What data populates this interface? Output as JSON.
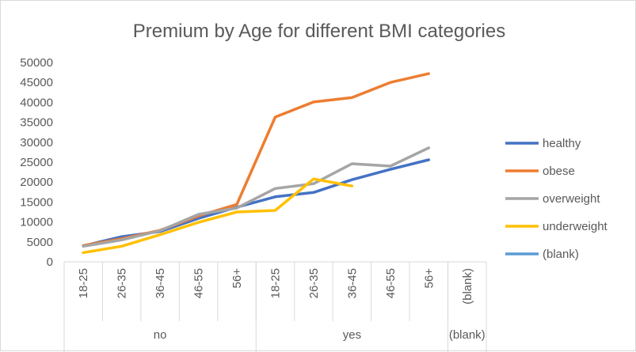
{
  "chart_data": {
    "type": "line",
    "title": "Premium by Age for different BMI categories",
    "xlabel": "",
    "ylabel": "",
    "ylim": [
      0,
      50000
    ],
    "y_ticks": [
      "50000",
      "45000",
      "40000",
      "35000",
      "30000",
      "25000",
      "20000",
      "15000",
      "10000",
      "5000",
      "0"
    ],
    "groups": [
      {
        "name": "no",
        "categories": [
          "18-25",
          "26-35",
          "36-45",
          "46-55",
          "56+"
        ]
      },
      {
        "name": "yes",
        "categories": [
          "18-25",
          "26-35",
          "36-45",
          "46-55",
          "56+"
        ]
      },
      {
        "name": "(blank)",
        "categories": [
          "(blank)"
        ]
      }
    ],
    "categories": [
      "no / 18-25",
      "no / 26-35",
      "no / 36-45",
      "no / 46-55",
      "no / 56+",
      "yes / 18-25",
      "yes / 26-35",
      "yes / 36-45",
      "yes / 46-55",
      "yes / 56+",
      "(blank) / (blank)"
    ],
    "series": [
      {
        "name": "healthy",
        "color": "#4472C4",
        "values": [
          4000,
          6300,
          7600,
          10900,
          13700,
          16300,
          17400,
          20600,
          23200,
          25600,
          null
        ]
      },
      {
        "name": "obese",
        "color": "#ED7D31",
        "values": [
          4100,
          5800,
          7900,
          11500,
          14400,
          36300,
          40100,
          41200,
          45000,
          47200,
          null
        ]
      },
      {
        "name": "overweight",
        "color": "#A5A5A5",
        "values": [
          3900,
          5500,
          7800,
          11900,
          13500,
          18400,
          19600,
          24600,
          24000,
          28600,
          null
        ]
      },
      {
        "name": "underweight",
        "color": "#FFC000",
        "values": [
          2300,
          3900,
          6800,
          9900,
          12500,
          12900,
          20800,
          19000,
          null,
          null,
          null
        ]
      },
      {
        "name": "(blank)",
        "color": "#5B9BD5",
        "values": [
          null,
          null,
          null,
          null,
          null,
          null,
          null,
          null,
          null,
          null,
          null
        ]
      }
    ],
    "grid": false,
    "legend": "right"
  }
}
